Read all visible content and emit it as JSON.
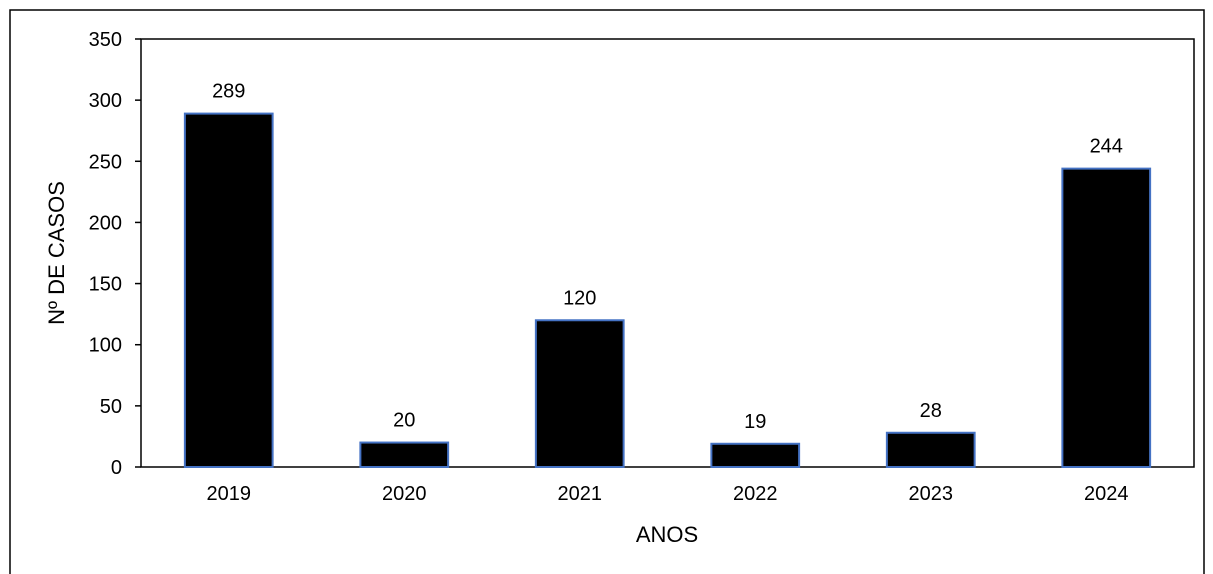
{
  "chart_data": {
    "type": "bar",
    "categories": [
      "2019",
      "2020",
      "2021",
      "2022",
      "2023",
      "2024"
    ],
    "values": [
      289,
      20,
      120,
      19,
      28,
      244
    ],
    "data_labels": [
      "289",
      "20",
      "120",
      "19",
      "28",
      "244"
    ],
    "title": "",
    "xlabel": "ANOS",
    "ylabel": "Nº DE CASOS",
    "ylim": [
      0,
      350
    ],
    "yticks": [
      0,
      50,
      100,
      150,
      200,
      250,
      300,
      350
    ],
    "grid": false,
    "legend": "none",
    "colors": {
      "bar_fill": "#000000",
      "bar_stroke": "#4472C4",
      "axis": "#000000",
      "frame": "#000000"
    }
  }
}
